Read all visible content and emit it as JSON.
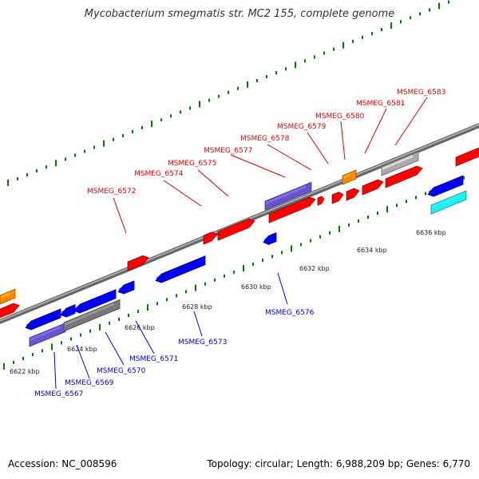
{
  "title": "Mycobacterium smegmatis str. MC2 155, complete genome",
  "footer": {
    "accession": "Accession: NC_008596",
    "topology": "Topology: circular; Length: 6,988,209 bp; Genes: 6,770"
  },
  "colors": {
    "forward_gene": "#ff0000",
    "reverse_gene": "#0000ee",
    "backbone": "#888888",
    "tick": "#007a00",
    "forward_label": "#e00000",
    "reverse_label": "#0000cc",
    "other_gene_purple": "#6655cc",
    "other_gene_gray": "#aaaaaa",
    "other_gene_orange": "#ff8800",
    "other_gene_cyan": "#22eeee"
  },
  "ticks": [
    "6622 kbp",
    "6624 kbp",
    "6626 kbp",
    "6628 kbp",
    "6630 kbp",
    "6632 kbp",
    "6634 kbp",
    "6636 kbp"
  ],
  "forward_genes": [
    "MSMEG_6572",
    "MSMEG_6574",
    "MSMEG_6575",
    "MSMEG_6577",
    "MSMEG_6578",
    "MSMEG_6579",
    "MSMEG_6580",
    "MSMEG_6581",
    "MSMEG_6583"
  ],
  "reverse_genes": [
    "MSMEG_6567",
    "MSMEG_6569",
    "MSMEG_6570",
    "MSMEG_6571",
    "MSMEG_6573",
    "MSMEG_6576"
  ]
}
